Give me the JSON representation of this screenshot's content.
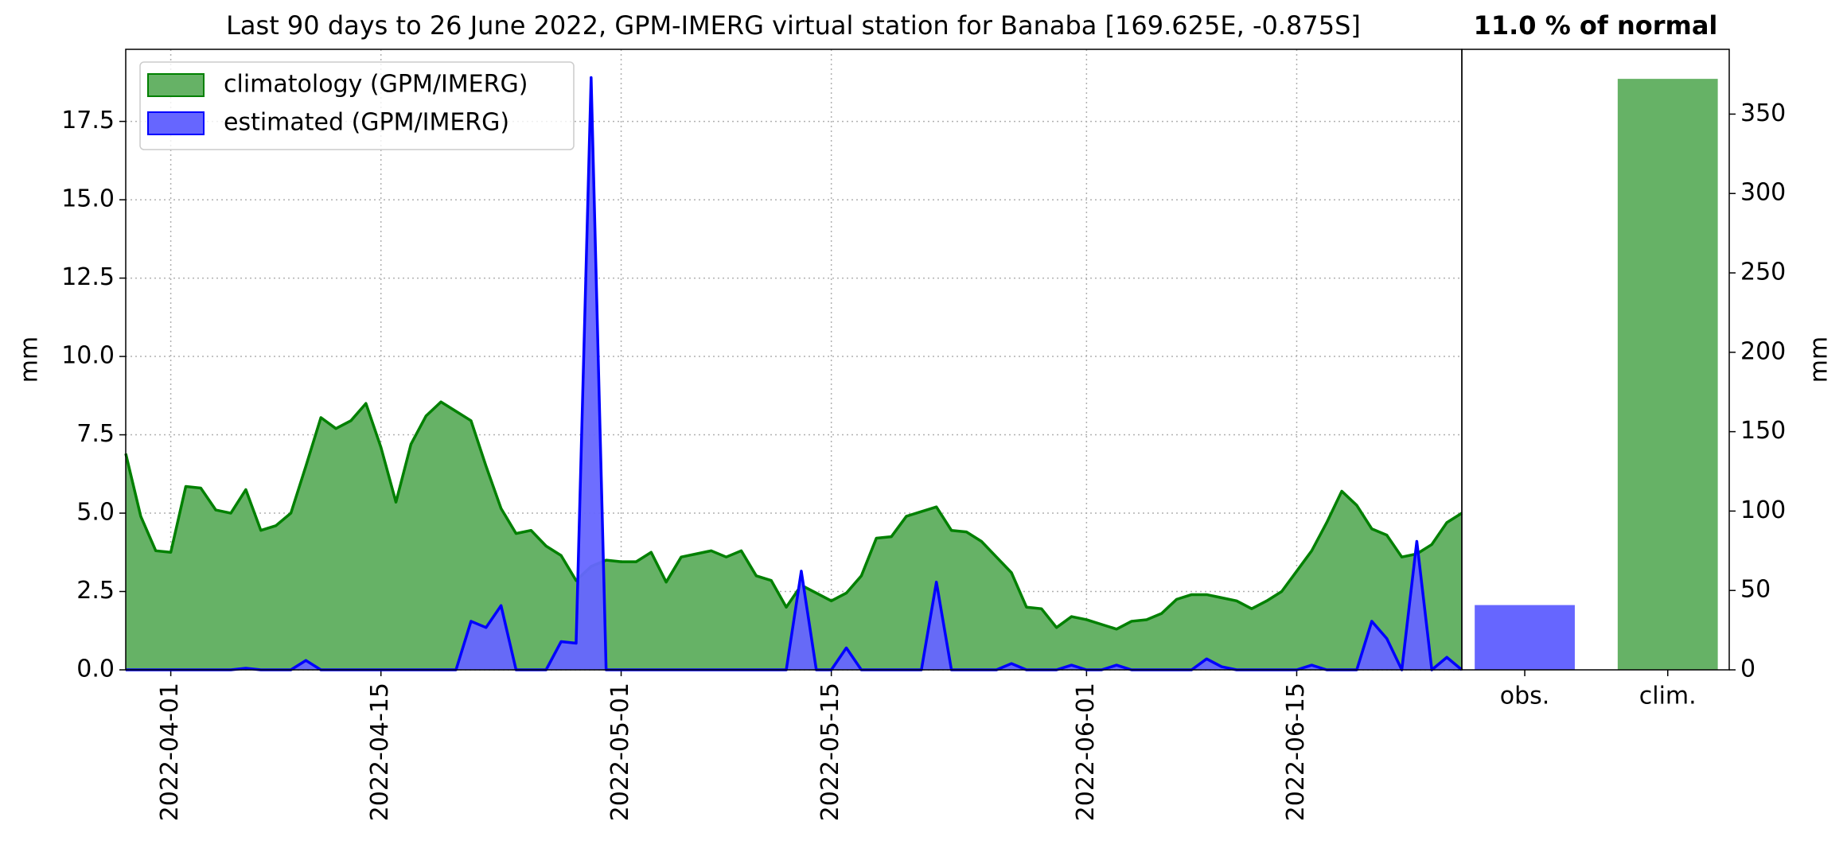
{
  "chart_data": [
    {
      "type": "area",
      "title": "Last 90 days to 26 June 2022, GPM-IMERG virtual station for Banaba [169.625E, -0.875S]",
      "ylabel": "mm",
      "x": [
        "2022-03-29",
        "2022-03-30",
        "2022-03-31",
        "2022-04-01",
        "2022-04-02",
        "2022-04-03",
        "2022-04-04",
        "2022-04-05",
        "2022-04-06",
        "2022-04-07",
        "2022-04-08",
        "2022-04-09",
        "2022-04-10",
        "2022-04-11",
        "2022-04-12",
        "2022-04-13",
        "2022-04-14",
        "2022-04-15",
        "2022-04-16",
        "2022-04-17",
        "2022-04-18",
        "2022-04-19",
        "2022-04-20",
        "2022-04-21",
        "2022-04-22",
        "2022-04-23",
        "2022-04-24",
        "2022-04-25",
        "2022-04-26",
        "2022-04-27",
        "2022-04-28",
        "2022-04-29",
        "2022-04-30",
        "2022-05-01",
        "2022-05-02",
        "2022-05-03",
        "2022-05-04",
        "2022-05-05",
        "2022-05-06",
        "2022-05-07",
        "2022-05-08",
        "2022-05-09",
        "2022-05-10",
        "2022-05-11",
        "2022-05-12",
        "2022-05-13",
        "2022-05-14",
        "2022-05-15",
        "2022-05-16",
        "2022-05-17",
        "2022-05-18",
        "2022-05-19",
        "2022-05-20",
        "2022-05-21",
        "2022-05-22",
        "2022-05-23",
        "2022-05-24",
        "2022-05-25",
        "2022-05-26",
        "2022-05-27",
        "2022-05-28",
        "2022-05-29",
        "2022-05-30",
        "2022-05-31",
        "2022-06-01",
        "2022-06-02",
        "2022-06-03",
        "2022-06-04",
        "2022-06-05",
        "2022-06-06",
        "2022-06-07",
        "2022-06-08",
        "2022-06-09",
        "2022-06-10",
        "2022-06-11",
        "2022-06-12",
        "2022-06-13",
        "2022-06-14",
        "2022-06-15",
        "2022-06-16",
        "2022-06-17",
        "2022-06-18",
        "2022-06-19",
        "2022-06-20",
        "2022-06-21",
        "2022-06-22",
        "2022-06-23",
        "2022-06-24",
        "2022-06-25",
        "2022-06-26"
      ],
      "series": [
        {
          "name": "climatology (GPM/IMERG)",
          "color": "#008000",
          "fill": "#66b266",
          "values": [
            6.9,
            4.9,
            3.8,
            3.75,
            5.85,
            5.8,
            5.1,
            5.0,
            5.75,
            4.45,
            4.6,
            5.0,
            6.5,
            8.05,
            7.7,
            7.95,
            8.5,
            7.1,
            5.35,
            7.2,
            8.1,
            8.55,
            8.25,
            7.95,
            6.5,
            5.15,
            4.35,
            4.45,
            3.95,
            3.65,
            2.85,
            3.3,
            3.5,
            3.45,
            3.45,
            3.75,
            2.8,
            3.6,
            3.7,
            3.8,
            3.6,
            3.8,
            3.0,
            2.85,
            2.0,
            2.7,
            2.45,
            2.2,
            2.45,
            3.0,
            4.2,
            4.25,
            4.9,
            5.05,
            5.2,
            4.45,
            4.4,
            4.1,
            3.6,
            3.1,
            2.0,
            1.95,
            1.35,
            1.7,
            1.6,
            1.45,
            1.3,
            1.55,
            1.6,
            1.8,
            2.25,
            2.4,
            2.4,
            2.3,
            2.2,
            1.95,
            2.2,
            2.5,
            3.15,
            3.8,
            4.7,
            5.7,
            5.25,
            4.5,
            4.3,
            3.6,
            3.7,
            4.0,
            4.7,
            5.0
          ]
        },
        {
          "name": "estimated (GPM/IMERG)",
          "color": "#0000ff",
          "fill": "#6666ff",
          "values": [
            0,
            0,
            0,
            0,
            0,
            0,
            0,
            0,
            0.05,
            0,
            0,
            0,
            0.3,
            0,
            0,
            0,
            0,
            0,
            0,
            0,
            0,
            0,
            0,
            1.55,
            1.35,
            2.05,
            0,
            0,
            0,
            0.9,
            0.85,
            18.9,
            0,
            0,
            0,
            0,
            0,
            0,
            0,
            0,
            0,
            0,
            0,
            0,
            0,
            3.15,
            0,
            0,
            0.7,
            0,
            0,
            0,
            0,
            0,
            2.8,
            0,
            0,
            0,
            0,
            0.2,
            0,
            0,
            0,
            0.15,
            0,
            0,
            0.15,
            0,
            0,
            0,
            0,
            0,
            0.35,
            0.1,
            0,
            0,
            0,
            0,
            0,
            0.15,
            0,
            0,
            0,
            1.55,
            1.0,
            0,
            4.1,
            0,
            0.4,
            0
          ]
        }
      ],
      "xlim": [
        "2022-03-29",
        "2022-06-26"
      ],
      "xticks": [
        "2022-04-01",
        "2022-04-15",
        "2022-05-01",
        "2022-05-15",
        "2022-06-01",
        "2022-06-15"
      ],
      "ylim": [
        0,
        19.8
      ],
      "yticks": [
        {
          "value": 0,
          "label": "0.0"
        },
        2.5,
        {
          "value": 5,
          "label": "5.0"
        },
        7.5,
        {
          "value": 10,
          "label": "10.0"
        },
        12.5,
        {
          "value": 15,
          "label": "15.0"
        },
        17.5
      ],
      "grid": true,
      "legend": "upper left"
    },
    {
      "type": "bar",
      "title": "11.0 % of normal",
      "ylabel": "mm",
      "categories": [
        "obs.",
        "clim."
      ],
      "values": [
        40.8,
        372.2
      ],
      "colors": [
        "#6666ff",
        "#66b266"
      ],
      "ylim": [
        0,
        390.8
      ],
      "yticks": [
        0,
        50,
        100,
        150,
        200,
        250,
        300,
        350
      ],
      "yaxis_side": "right",
      "grid": false
    }
  ]
}
